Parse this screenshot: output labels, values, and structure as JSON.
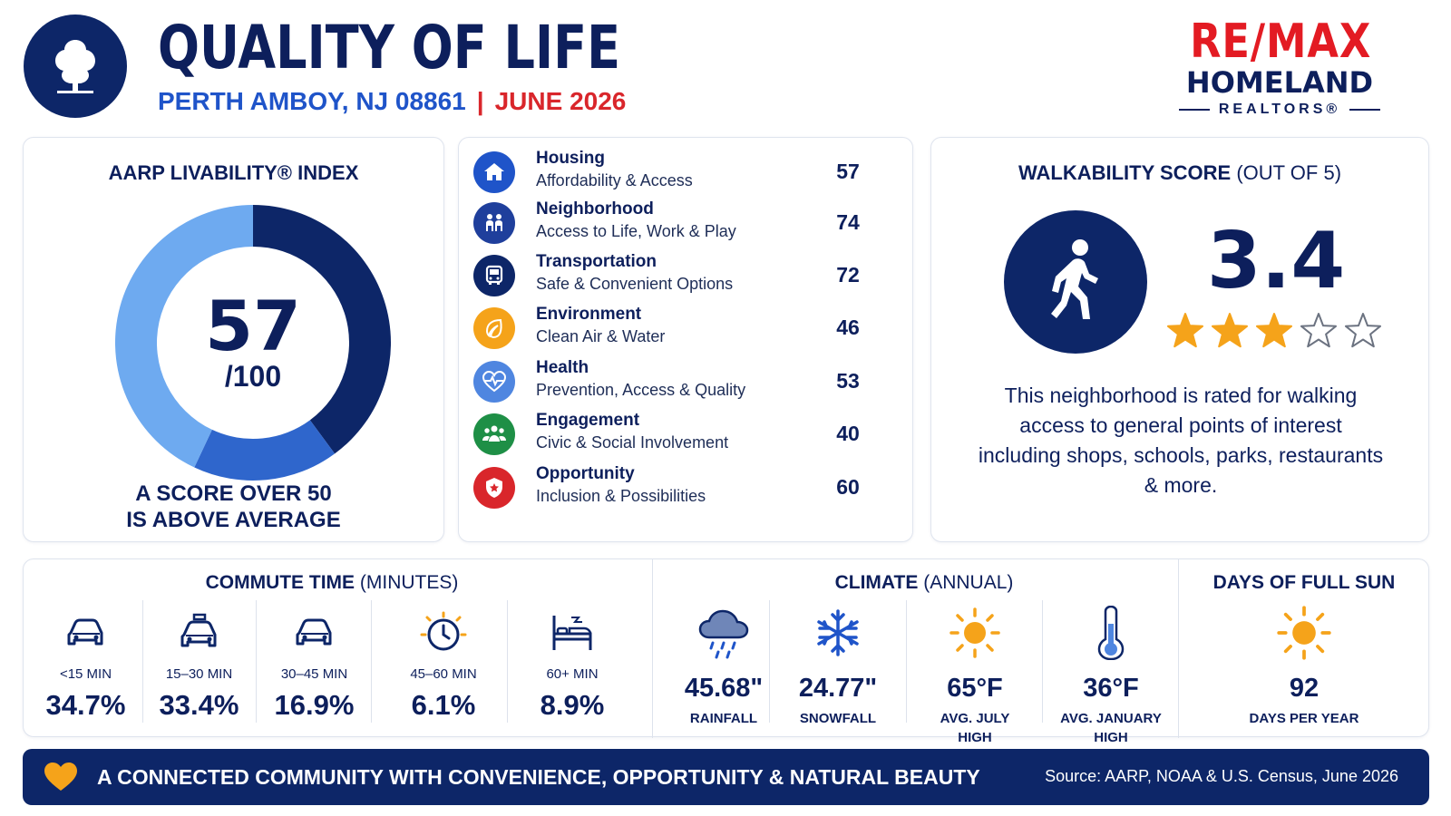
{
  "header": {
    "title": "QUALITY OF LIFE",
    "location": "PERTH AMBOY, NJ 08861",
    "separator": "|",
    "date": "JUNE 2026",
    "logo_icon": "tree-icon"
  },
  "brand": {
    "line1": "RE/MAX",
    "line2": "HOMELAND",
    "line3": "REALTORS®"
  },
  "aarp": {
    "title": "AARP LIVABILITY® INDEX",
    "score": "57",
    "out_of": "/100",
    "score_fraction": 0.57,
    "note_line1": "A SCORE OVER 50",
    "note_line2": "IS ABOVE AVERAGE",
    "colors": {
      "score": "#0d2668",
      "mid": "#2f66cc",
      "rest": "#6eaaf0"
    }
  },
  "categories": [
    {
      "name": "Housing",
      "desc": "Affordability & Access",
      "score": "57",
      "icon": "house-icon",
      "color": "#1f54c9"
    },
    {
      "name": "Neighborhood",
      "desc": "Access to Life, Work & Play",
      "score": "74",
      "icon": "people-icon",
      "color": "#1f3f9c"
    },
    {
      "name": "Transportation",
      "desc": "Safe & Convenient Options",
      "score": "72",
      "icon": "bus-icon",
      "color": "#0d2668"
    },
    {
      "name": "Environment",
      "desc": "Clean Air & Water",
      "score": "46",
      "icon": "leaf-icon",
      "color": "#f5a31a"
    },
    {
      "name": "Health",
      "desc": "Prevention, Access & Quality",
      "score": "53",
      "icon": "heart-pulse-icon",
      "color": "#4f86e0"
    },
    {
      "name": "Engagement",
      "desc": "Civic & Social Involvement",
      "score": "40",
      "icon": "group-icon",
      "color": "#1e8f46"
    },
    {
      "name": "Opportunity",
      "desc": "Inclusion & Possibilities",
      "score": "60",
      "icon": "shield-star-icon",
      "color": "#d9262b"
    }
  ],
  "walkability": {
    "title": "WALKABILITY SCORE",
    "title_suffix": "(OUT OF 5)",
    "score": "3.4",
    "stars_filled": 3,
    "stars_total": 5,
    "description": "This neighborhood is rated for walking access to general points of interest including shops, schools, parks, restaurants & more.",
    "icon": "pedestrian-icon"
  },
  "commute": {
    "title": "COMMUTE TIME",
    "title_suffix": "(MINUTES)",
    "items": [
      {
        "label": "<15 MIN",
        "value": "34.7%",
        "icon": "car-icon"
      },
      {
        "label": "15–30 MIN",
        "value": "33.4%",
        "icon": "car-icon"
      },
      {
        "label": "30–45 MIN",
        "value": "16.9%",
        "icon": "car-icon"
      },
      {
        "label": "45–60 MIN",
        "value": "6.1%",
        "icon": "clock-icon"
      },
      {
        "label": "60+ MIN",
        "value": "8.9%",
        "icon": "bed-icon"
      }
    ]
  },
  "climate": {
    "title": "CLIMATE",
    "title_suffix": "(ANNUAL)",
    "items": [
      {
        "value": "45.68\"",
        "label": "RAINFALL",
        "label2": "",
        "icon": "rain-cloud-icon"
      },
      {
        "value": "24.77\"",
        "label": "SNOWFALL",
        "label2": "",
        "icon": "snowflake-icon"
      },
      {
        "value": "65°F",
        "label": "AVG. JULY",
        "label2": "HIGH",
        "icon": "sun-icon"
      },
      {
        "value": "36°F",
        "label": "AVG. JANUARY",
        "label2": "HIGH",
        "icon": "thermometer-icon"
      }
    ]
  },
  "sun": {
    "title": "DAYS OF FULL SUN",
    "value": "92",
    "label": "DAYS PER YEAR",
    "icon": "sun-icon"
  },
  "footer": {
    "tagline": "A CONNECTED COMMUNITY WITH CONVENIENCE, OPPORTUNITY & NATURAL BEAUTY",
    "source": "Source: AARP, NOAA & U.S. Census, June 2026",
    "icon": "heart-icon"
  }
}
